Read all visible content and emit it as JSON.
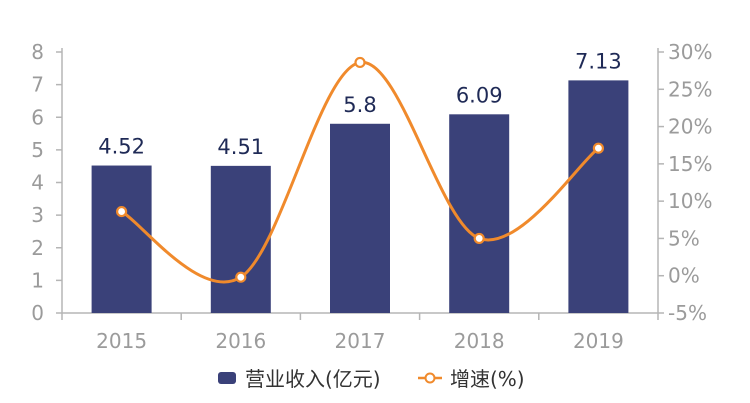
{
  "chart_data": {
    "type": "bar",
    "categories": [
      "2015",
      "2016",
      "2017",
      "2018",
      "2019"
    ],
    "series": [
      {
        "name": "营业收入(亿元)",
        "type": "bar",
        "axis": "left",
        "values": [
          4.52,
          4.51,
          5.8,
          6.09,
          7.13
        ],
        "data_labels": [
          "4.52",
          "4.51",
          "5.8",
          "6.09",
          "7.13"
        ],
        "color": "#3a4179"
      },
      {
        "name": "增速(%)",
        "type": "line",
        "smooth": true,
        "axis": "right",
        "values": [
          8.6,
          -0.2,
          28.6,
          5.0,
          17.1
        ],
        "color": "#f08a2c"
      }
    ],
    "y_left": {
      "min": 0,
      "max": 8,
      "step": 1,
      "tick_labels": [
        "0",
        "1",
        "2",
        "3",
        "4",
        "5",
        "6",
        "7",
        "8"
      ]
    },
    "y_right": {
      "min": -5,
      "max": 30,
      "step": 5,
      "tick_labels": [
        "-5%",
        "0%",
        "5%",
        "10%",
        "15%",
        "20%",
        "25%",
        "30%"
      ]
    },
    "legend": {
      "position": "bottom-center"
    },
    "grid": false,
    "colors": {
      "axis": "#b5b5b5",
      "tick_text": "#9b9b9b",
      "label_text": "#1f2a56"
    }
  }
}
